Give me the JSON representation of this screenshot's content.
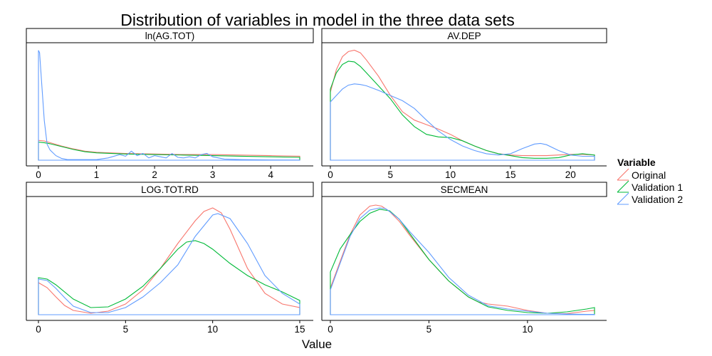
{
  "colors": {
    "Original": "#F8766D",
    "Validation 1": "#00BA38",
    "Validation 2": "#619CFF",
    "strip_fill": "#ffffff",
    "axis": "#000000"
  },
  "chart_data": {
    "type": "line",
    "subtype": "faceted density",
    "title": "Distribution of variables in model in the three data sets",
    "xlabel": "Value",
    "ylabel": "",
    "grid": false,
    "legend": {
      "title": "Variable",
      "placement": "right",
      "entries": [
        "Original",
        "Validation 1",
        "Validation 2"
      ]
    },
    "facets": [
      {
        "name": "ln(AG.TOT)",
        "xlim": [
          0,
          4.5
        ],
        "ymax": 1.0,
        "xticks": [
          0,
          1,
          2,
          3,
          4
        ],
        "series": [
          {
            "name": "Original",
            "x": [
              0,
              0.1,
              0.2,
              0.4,
              0.6,
              0.8,
              1.0,
              1.5,
              2.0,
              2.5,
              3.0,
              3.5,
              4.0,
              4.5
            ],
            "y": [
              0.175,
              0.17,
              0.155,
              0.125,
              0.1,
              0.08,
              0.07,
              0.06,
              0.055,
              0.05,
              0.05,
              0.045,
              0.04,
              0.035
            ]
          },
          {
            "name": "Validation 1",
            "x": [
              0,
              0.1,
              0.2,
              0.4,
              0.6,
              0.8,
              1.0,
              1.5,
              2.0,
              2.5,
              3.0,
              3.5,
              4.0,
              4.5
            ],
            "y": [
              0.16,
              0.155,
              0.145,
              0.12,
              0.095,
              0.075,
              0.065,
              0.055,
              0.05,
              0.045,
              0.04,
              0.035,
              0.03,
              0.025
            ]
          },
          {
            "name": "Validation 2",
            "x": [
              0,
              0.02,
              0.05,
              0.1,
              0.15,
              0.2,
              0.3,
              0.4,
              0.5,
              1.0,
              1.2,
              1.4,
              1.5,
              1.6,
              1.7,
              1.8,
              1.9,
              2.0,
              2.1,
              2.2,
              2.3,
              2.4,
              2.5,
              2.6,
              2.7,
              2.8,
              2.9,
              3.0,
              3.2,
              3.5,
              4.0,
              4.5
            ],
            "y": [
              0.97,
              0.95,
              0.72,
              0.35,
              0.14,
              0.09,
              0.04,
              0.015,
              0.005,
              0.005,
              0.02,
              0.05,
              0.035,
              0.08,
              0.04,
              0.06,
              0.02,
              0.04,
              0.03,
              0.02,
              0.06,
              0.025,
              0.02,
              0.03,
              0.02,
              0.05,
              0.06,
              0.03,
              0.01,
              0.005,
              0.002,
              0.001
            ]
          }
        ]
      },
      {
        "name": "AV.DEP",
        "xlim": [
          0,
          22
        ],
        "ymax": 0.175,
        "xticks": [
          0,
          5,
          10,
          15,
          20
        ],
        "series": [
          {
            "name": "Original",
            "x": [
              0,
              0.5,
              1,
              1.5,
              2,
              2.5,
              3,
              4,
              5,
              6,
              7,
              8,
              9,
              10,
              11,
              12,
              13,
              14,
              15,
              16,
              17,
              18,
              19,
              20,
              21,
              22
            ],
            "y": [
              0.105,
              0.14,
              0.16,
              0.168,
              0.17,
              0.166,
              0.155,
              0.13,
              0.1,
              0.075,
              0.062,
              0.055,
              0.048,
              0.04,
              0.03,
              0.022,
              0.015,
              0.01,
              0.008,
              0.007,
              0.007,
              0.007,
              0.008,
              0.009,
              0.009,
              0.008
            ]
          },
          {
            "name": "Validation 1",
            "x": [
              0,
              0.5,
              1,
              1.5,
              2,
              2.5,
              3,
              4,
              5,
              6,
              7,
              8,
              9,
              10,
              11,
              12,
              13,
              14,
              15,
              16,
              17,
              18,
              19,
              20,
              21,
              22
            ],
            "y": [
              0.11,
              0.135,
              0.148,
              0.153,
              0.152,
              0.145,
              0.135,
              0.115,
              0.095,
              0.07,
              0.052,
              0.04,
              0.036,
              0.035,
              0.03,
              0.022,
              0.015,
              0.01,
              0.007,
              0.004,
              0.003,
              0.003,
              0.004,
              0.008,
              0.01,
              0.008
            ]
          },
          {
            "name": "Validation 2",
            "x": [
              0,
              0.5,
              1,
              1.5,
              2,
              2.5,
              3,
              4,
              5,
              6,
              7,
              8,
              9,
              10,
              11,
              12,
              13,
              14,
              15,
              16,
              17,
              17.5,
              18,
              19,
              20,
              21,
              22
            ],
            "y": [
              0.09,
              0.1,
              0.11,
              0.116,
              0.118,
              0.117,
              0.115,
              0.108,
              0.1,
              0.092,
              0.08,
              0.062,
              0.045,
              0.032,
              0.022,
              0.015,
              0.01,
              0.008,
              0.01,
              0.018,
              0.025,
              0.026,
              0.024,
              0.015,
              0.008,
              0.006,
              0.006
            ]
          }
        ]
      },
      {
        "name": "LOG.TOT.RD",
        "xlim": [
          0,
          15
        ],
        "ymax": 0.16,
        "xticks": [
          0,
          5,
          10,
          15
        ],
        "series": [
          {
            "name": "Original",
            "x": [
              0,
              0.5,
              1,
              1.5,
              2,
              3,
              4,
              5,
              6,
              7,
              8,
              9,
              9.5,
              10,
              10.5,
              11,
              12,
              13,
              14,
              15
            ],
            "y": [
              0.045,
              0.038,
              0.025,
              0.013,
              0.006,
              0.002,
              0.005,
              0.015,
              0.035,
              0.065,
              0.1,
              0.132,
              0.145,
              0.15,
              0.143,
              0.12,
              0.065,
              0.03,
              0.015,
              0.01
            ]
          },
          {
            "name": "Validation 1",
            "x": [
              0,
              0.5,
              1,
              2,
              3,
              4,
              5,
              6,
              7,
              8,
              8.5,
              9,
              9.5,
              10,
              11,
              12,
              13,
              14,
              15
            ],
            "y": [
              0.052,
              0.05,
              0.042,
              0.022,
              0.01,
              0.011,
              0.022,
              0.04,
              0.065,
              0.092,
              0.102,
              0.104,
              0.1,
              0.092,
              0.072,
              0.055,
              0.042,
              0.032,
              0.02
            ]
          },
          {
            "name": "Validation 2",
            "x": [
              0,
              0.5,
              1,
              1.5,
              2,
              3,
              4,
              5,
              6,
              7,
              8,
              9,
              10,
              10.3,
              11,
              12,
              13,
              14,
              15
            ],
            "y": [
              0.05,
              0.048,
              0.037,
              0.024,
              0.012,
              0.003,
              0.003,
              0.01,
              0.025,
              0.045,
              0.07,
              0.11,
              0.14,
              0.142,
              0.135,
              0.1,
              0.055,
              0.03,
              0.015
            ]
          }
        ]
      },
      {
        "name": "SECMEAN",
        "xlim": [
          0,
          13.4
        ],
        "ymax": 0.32,
        "xticks": [
          0,
          5,
          10
        ],
        "series": [
          {
            "name": "Original",
            "x": [
              0,
              0.5,
              1,
              1.5,
              2,
              2.3,
              2.6,
              3,
              3.5,
              4,
              5,
              6,
              7,
              7.5,
              8,
              9,
              10,
              11,
              12,
              13,
              13.4
            ],
            "y": [
              0.075,
              0.15,
              0.225,
              0.28,
              0.305,
              0.308,
              0.305,
              0.29,
              0.262,
              0.225,
              0.155,
              0.095,
              0.05,
              0.036,
              0.03,
              0.024,
              0.012,
              0.004,
              0.003,
              0.01,
              0.012
            ]
          },
          {
            "name": "Validation 1",
            "x": [
              0,
              0.5,
              1,
              1.5,
              2,
              2.5,
              3,
              3.5,
              4,
              5,
              6,
              7,
              8,
              9,
              10,
              11,
              12,
              13,
              13.4
            ],
            "y": [
              0.12,
              0.185,
              0.225,
              0.262,
              0.285,
              0.296,
              0.292,
              0.268,
              0.23,
              0.155,
              0.095,
              0.05,
              0.022,
              0.012,
              0.006,
              0.004,
              0.008,
              0.016,
              0.02
            ]
          },
          {
            "name": "Validation 2",
            "x": [
              0,
              0.5,
              1,
              1.5,
              2,
              2.5,
              2.8,
              3,
              3.5,
              4,
              5,
              6,
              7,
              8,
              9,
              10,
              11,
              12,
              13,
              13.4
            ],
            "y": [
              0.07,
              0.145,
              0.22,
              0.27,
              0.294,
              0.3,
              0.298,
              0.29,
              0.268,
              0.235,
              0.175,
              0.105,
              0.055,
              0.025,
              0.016,
              0.01,
              0.004,
              0.002,
              0.001,
              0.001
            ]
          }
        ]
      }
    ]
  }
}
